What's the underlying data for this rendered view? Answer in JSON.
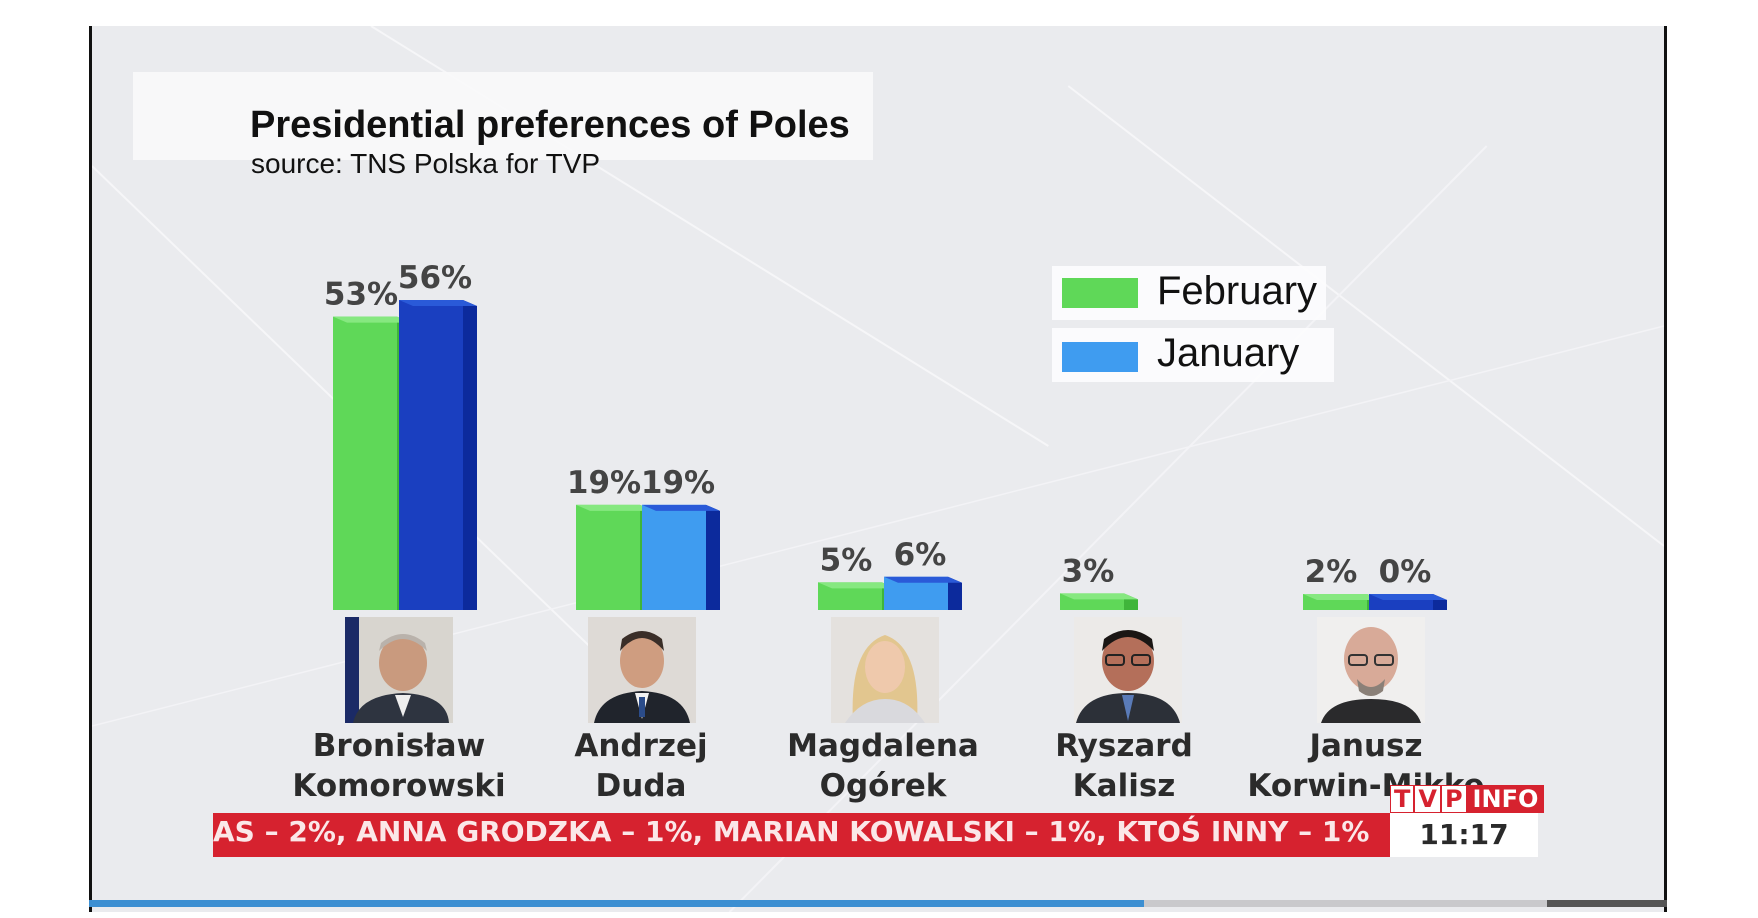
{
  "chart_data": {
    "type": "bar",
    "title": "Presidential preferences of Poles",
    "subtitle": "source: TNS Polska for TVP",
    "categories": [
      "Bronisław Komorowski",
      "Andrzej Duda",
      "Magdalena Ogórek",
      "Ryszard Kalisz",
      "Janusz Korwin-Mikke"
    ],
    "name_lines": [
      [
        "Bronisław",
        "Komorowski"
      ],
      [
        "Andrzej",
        "Duda"
      ],
      [
        "Magdalena",
        "Ogórek"
      ],
      [
        "Ryszard",
        "Kalisz"
      ],
      [
        "Janusz",
        "Korwin-Mikke"
      ]
    ],
    "series": [
      {
        "name": "February",
        "color": "#5fd858",
        "values": [
          53,
          19,
          5,
          3,
          2
        ],
        "labels": [
          "53%",
          "19%",
          "5%",
          "3%",
          "2%"
        ]
      },
      {
        "name": "January",
        "color": "#3f9cf0",
        "values": [
          56,
          19,
          6,
          null,
          0
        ],
        "labels": [
          "56%",
          "19%",
          "6%",
          "",
          "0%"
        ]
      }
    ],
    "ylim": [
      0,
      60
    ],
    "legend": "top-right"
  },
  "ticker": {
    "text": "AS – 2%, ANNA GRODZKA – 1%, MARIAN KOWALSKI – 1%, KTOŚ INNY – 1%",
    "clock": "11:17",
    "brand_letters": [
      "T",
      "V",
      "P"
    ],
    "brand_info": "INFO"
  },
  "colors": {
    "february": "#5fd858",
    "january": "#3f9cf0",
    "january_dark": "#1030a8",
    "ticker_red": "#d6222f"
  }
}
